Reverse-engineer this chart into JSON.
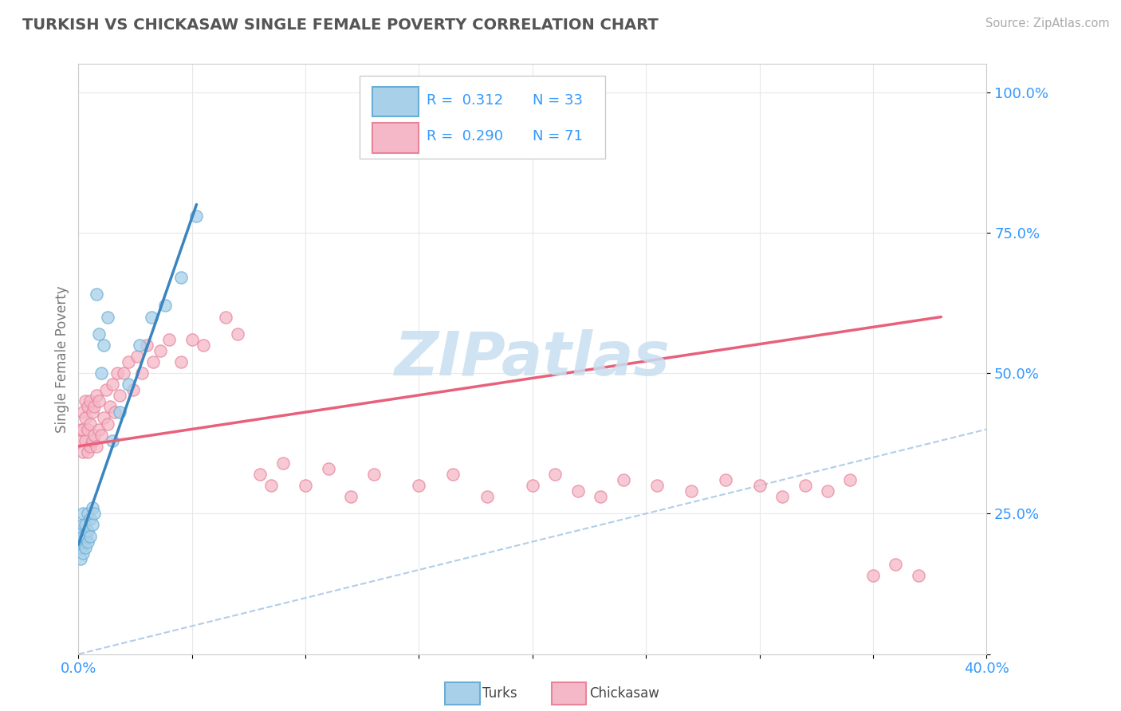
{
  "title": "TURKISH VS CHICKASAW SINGLE FEMALE POVERTY CORRELATION CHART",
  "source": "Source: ZipAtlas.com",
  "ylabel_label": "Single Female Poverty",
  "xlim": [
    0.0,
    0.4
  ],
  "ylim": [
    0.0,
    1.05
  ],
  "turks_color": "#a8d0e8",
  "turks_edge_color": "#6aaed6",
  "chickasaw_color": "#f4b8c8",
  "chickasaw_edge_color": "#e8849a",
  "turks_line_color": "#3a85c0",
  "chickasaw_line_color": "#e8607a",
  "diagonal_color": "#aac8e8",
  "watermark_color": "#c8dff0",
  "background_color": "#ffffff",
  "grid_color": "#e8e8e8",
  "title_color": "#555555",
  "source_color": "#aaaaaa",
  "tick_color": "#3399ff",
  "ylabel_color": "#777777",
  "turks_scatter": {
    "x": [
      0.001,
      0.001,
      0.001,
      0.001,
      0.002,
      0.002,
      0.002,
      0.002,
      0.002,
      0.003,
      0.003,
      0.003,
      0.004,
      0.004,
      0.004,
      0.005,
      0.005,
      0.006,
      0.006,
      0.007,
      0.008,
      0.009,
      0.01,
      0.011,
      0.013,
      0.015,
      0.018,
      0.022,
      0.027,
      0.032,
      0.038,
      0.045,
      0.052
    ],
    "y": [
      0.17,
      0.19,
      0.2,
      0.22,
      0.18,
      0.2,
      0.21,
      0.23,
      0.25,
      0.19,
      0.21,
      0.23,
      0.2,
      0.22,
      0.25,
      0.21,
      0.24,
      0.23,
      0.26,
      0.25,
      0.64,
      0.57,
      0.5,
      0.55,
      0.6,
      0.38,
      0.43,
      0.48,
      0.55,
      0.6,
      0.62,
      0.67,
      0.78
    ]
  },
  "chickasaw_scatter": {
    "x": [
      0.001,
      0.001,
      0.002,
      0.002,
      0.002,
      0.003,
      0.003,
      0.003,
      0.004,
      0.004,
      0.004,
      0.005,
      0.005,
      0.005,
      0.006,
      0.006,
      0.007,
      0.007,
      0.008,
      0.008,
      0.009,
      0.009,
      0.01,
      0.011,
      0.012,
      0.013,
      0.014,
      0.015,
      0.016,
      0.017,
      0.018,
      0.02,
      0.022,
      0.024,
      0.026,
      0.028,
      0.03,
      0.033,
      0.036,
      0.04,
      0.045,
      0.05,
      0.055,
      0.065,
      0.07,
      0.08,
      0.085,
      0.09,
      0.1,
      0.11,
      0.12,
      0.13,
      0.15,
      0.165,
      0.18,
      0.2,
      0.21,
      0.22,
      0.23,
      0.24,
      0.255,
      0.27,
      0.285,
      0.3,
      0.31,
      0.32,
      0.33,
      0.34,
      0.35,
      0.36,
      0.37
    ],
    "y": [
      0.38,
      0.4,
      0.36,
      0.4,
      0.43,
      0.38,
      0.42,
      0.45,
      0.36,
      0.4,
      0.44,
      0.37,
      0.41,
      0.45,
      0.38,
      0.43,
      0.39,
      0.44,
      0.37,
      0.46,
      0.4,
      0.45,
      0.39,
      0.42,
      0.47,
      0.41,
      0.44,
      0.48,
      0.43,
      0.5,
      0.46,
      0.5,
      0.52,
      0.47,
      0.53,
      0.5,
      0.55,
      0.52,
      0.54,
      0.56,
      0.52,
      0.56,
      0.55,
      0.6,
      0.57,
      0.32,
      0.3,
      0.34,
      0.3,
      0.33,
      0.28,
      0.32,
      0.3,
      0.32,
      0.28,
      0.3,
      0.32,
      0.29,
      0.28,
      0.31,
      0.3,
      0.29,
      0.31,
      0.3,
      0.28,
      0.3,
      0.29,
      0.31,
      0.14,
      0.16,
      0.14
    ]
  },
  "turks_line": {
    "x0": 0.0,
    "x1": 0.052,
    "y0": 0.195,
    "y1": 0.8
  },
  "chickasaw_line": {
    "x0": 0.0,
    "x1": 0.38,
    "y0": 0.37,
    "y1": 0.6
  },
  "legend_R_turks": "R =  0.312",
  "legend_N_turks": "N = 33",
  "legend_R_chickasaw": "R =  0.290",
  "legend_N_chickasaw": "N = 71"
}
